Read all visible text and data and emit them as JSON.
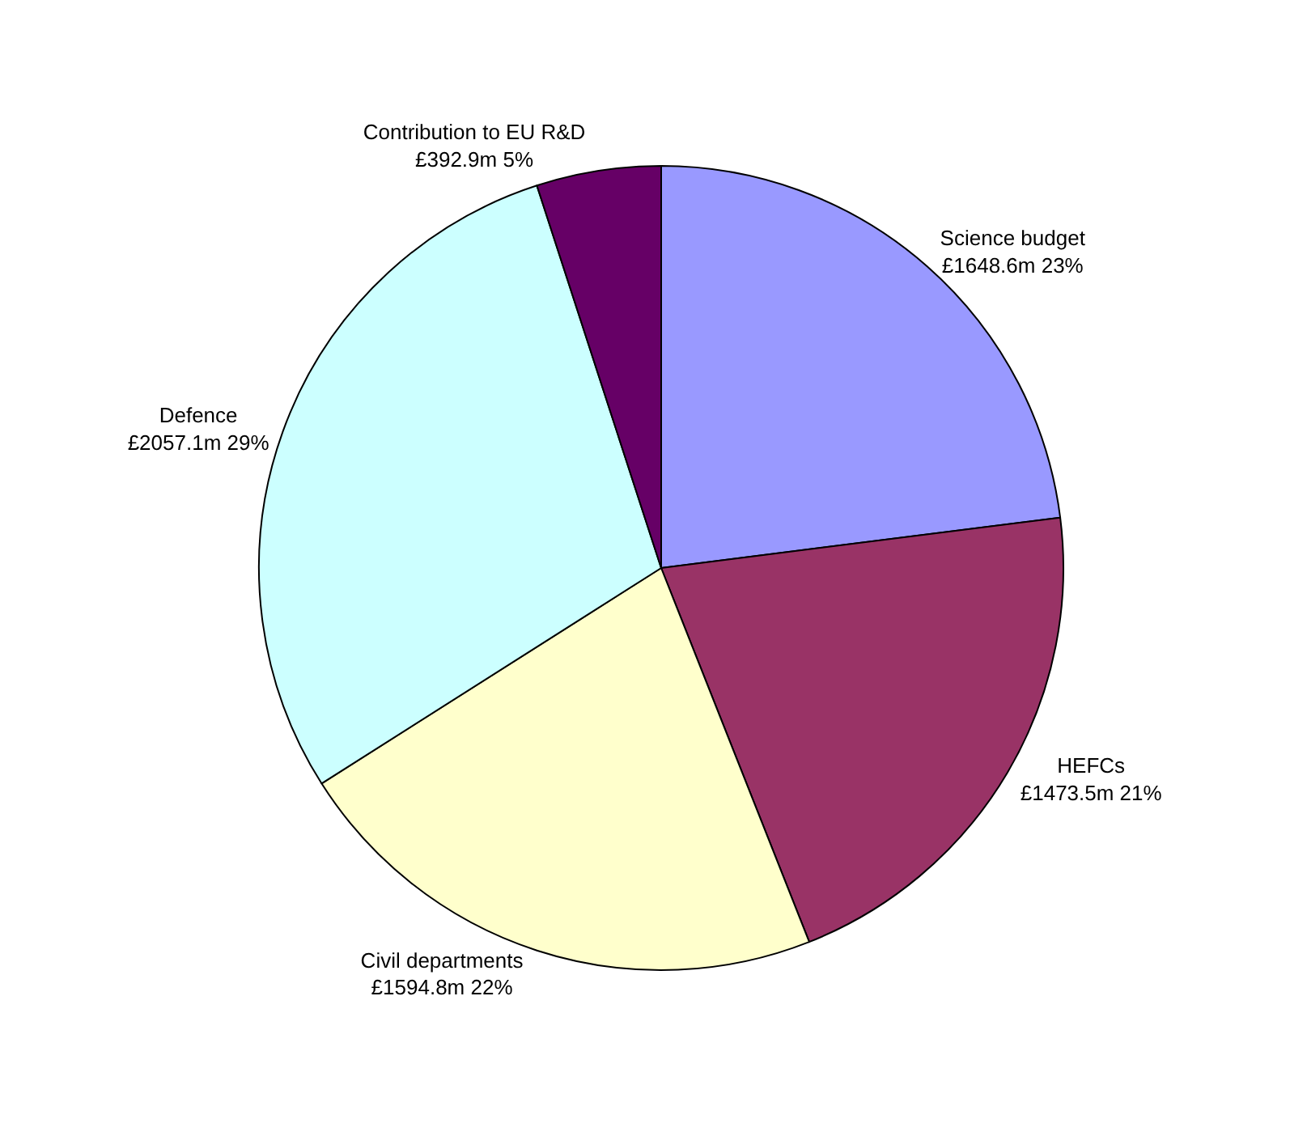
{
  "chart_data": {
    "type": "pie",
    "categories": [
      "Science budget",
      "HEFCs",
      "Civil departments",
      "Defence",
      "Contribution to EU R&D"
    ],
    "values": [
      23,
      21,
      22,
      29,
      5
    ],
    "value_labels": [
      "£1648.6m 23%",
      "£1473.5m 21%",
      "£1594.8m 22%",
      "£2057.1m 29%",
      "£392.9m 5%"
    ],
    "colors": [
      "#9999ff",
      "#993366",
      "#ffffcc",
      "#ccffff",
      "#660066"
    ],
    "legend": false
  }
}
